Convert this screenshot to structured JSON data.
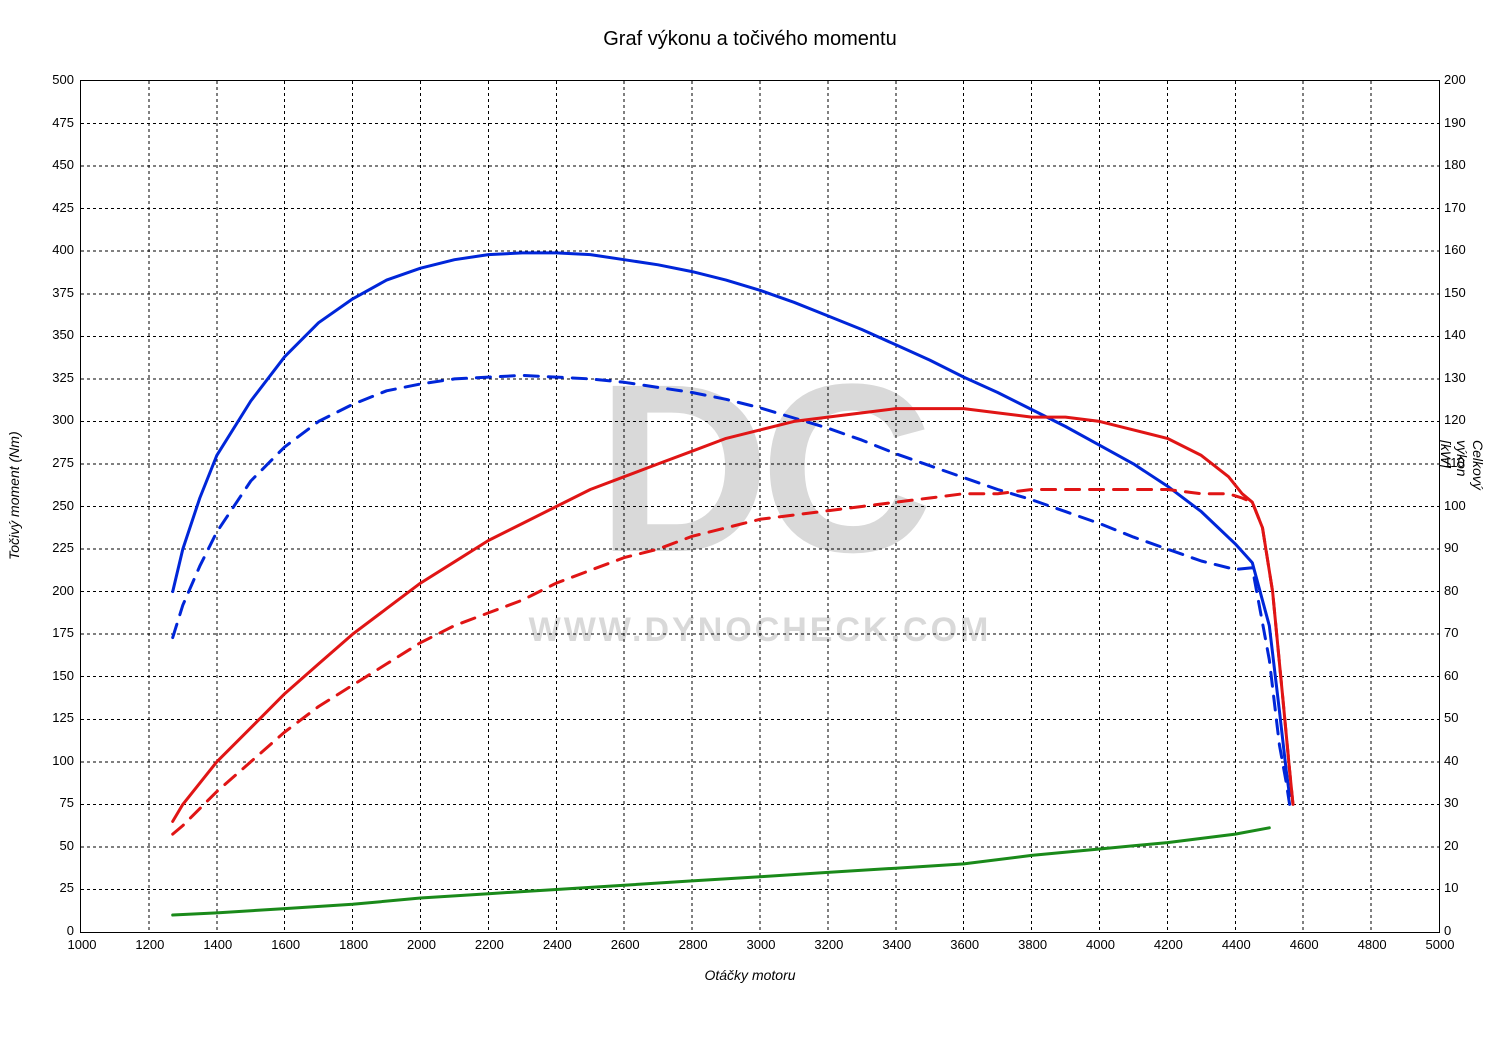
{
  "chart": {
    "type": "line",
    "title": "Graf výkonu a točivého momentu",
    "title_fontsize": 20,
    "background_color": "#ffffff",
    "grid_color": "#000000",
    "grid_dash": "3 3",
    "x_axis": {
      "label": "Otáčky motoru",
      "min": 1000,
      "max": 5000,
      "tick_step": 200,
      "fontsize": 13,
      "label_fontsize": 14
    },
    "y_left": {
      "label": "Točivý moment (Nm)",
      "min": 0,
      "max": 500,
      "tick_step": 25,
      "fontsize": 13,
      "label_fontsize": 14
    },
    "y_right": {
      "label": "Celkový výkon [kW]",
      "min": 0,
      "max": 200,
      "tick_step": 10,
      "fontsize": 13,
      "label_fontsize": 14
    },
    "watermark": {
      "logo_text": "DC",
      "url_text": "WWW.DYNOCHECK.COM",
      "color": "#d9d9d9",
      "logo_fontsize": 240,
      "url_fontsize": 34
    },
    "series": [
      {
        "name": "torque_tuned",
        "axis": "left",
        "color": "#0026d9",
        "line_width": 3,
        "dash": "none",
        "points": [
          [
            1270,
            200
          ],
          [
            1300,
            225
          ],
          [
            1350,
            255
          ],
          [
            1400,
            280
          ],
          [
            1500,
            312
          ],
          [
            1600,
            338
          ],
          [
            1700,
            358
          ],
          [
            1800,
            372
          ],
          [
            1900,
            383
          ],
          [
            2000,
            390
          ],
          [
            2100,
            395
          ],
          [
            2200,
            398
          ],
          [
            2300,
            399
          ],
          [
            2400,
            399
          ],
          [
            2500,
            398
          ],
          [
            2600,
            395
          ],
          [
            2700,
            392
          ],
          [
            2800,
            388
          ],
          [
            2900,
            383
          ],
          [
            3000,
            377
          ],
          [
            3100,
            370
          ],
          [
            3200,
            362
          ],
          [
            3300,
            354
          ],
          [
            3400,
            345
          ],
          [
            3500,
            336
          ],
          [
            3600,
            326
          ],
          [
            3700,
            317
          ],
          [
            3800,
            307
          ],
          [
            3900,
            297
          ],
          [
            4000,
            286
          ],
          [
            4100,
            275
          ],
          [
            4200,
            262
          ],
          [
            4300,
            247
          ],
          [
            4400,
            228
          ],
          [
            4450,
            217
          ],
          [
            4500,
            180
          ],
          [
            4530,
            130
          ],
          [
            4550,
            95
          ],
          [
            4560,
            80
          ]
        ]
      },
      {
        "name": "torque_stock",
        "axis": "left",
        "color": "#0026d9",
        "line_width": 3,
        "dash": "14 10",
        "points": [
          [
            1270,
            173
          ],
          [
            1300,
            192
          ],
          [
            1350,
            215
          ],
          [
            1400,
            235
          ],
          [
            1500,
            265
          ],
          [
            1600,
            285
          ],
          [
            1700,
            300
          ],
          [
            1800,
            310
          ],
          [
            1900,
            318
          ],
          [
            2000,
            322
          ],
          [
            2100,
            325
          ],
          [
            2200,
            326
          ],
          [
            2300,
            327
          ],
          [
            2400,
            326
          ],
          [
            2500,
            325
          ],
          [
            2600,
            323
          ],
          [
            2700,
            320
          ],
          [
            2800,
            317
          ],
          [
            2900,
            313
          ],
          [
            3000,
            308
          ],
          [
            3100,
            302
          ],
          [
            3200,
            296
          ],
          [
            3300,
            289
          ],
          [
            3400,
            281
          ],
          [
            3500,
            274
          ],
          [
            3600,
            267
          ],
          [
            3700,
            260
          ],
          [
            3800,
            254
          ],
          [
            3900,
            247
          ],
          [
            4000,
            240
          ],
          [
            4100,
            232
          ],
          [
            4200,
            225
          ],
          [
            4300,
            218
          ],
          [
            4400,
            213
          ],
          [
            4450,
            214
          ],
          [
            4500,
            160
          ],
          [
            4530,
            110
          ],
          [
            4550,
            88
          ],
          [
            4560,
            75
          ]
        ]
      },
      {
        "name": "power_tuned",
        "axis": "right",
        "color": "#e01515",
        "line_width": 3,
        "dash": "none",
        "points": [
          [
            1270,
            26
          ],
          [
            1300,
            30
          ],
          [
            1400,
            40
          ],
          [
            1500,
            48
          ],
          [
            1600,
            56
          ],
          [
            1700,
            63
          ],
          [
            1800,
            70
          ],
          [
            1900,
            76
          ],
          [
            2000,
            82
          ],
          [
            2100,
            87
          ],
          [
            2200,
            92
          ],
          [
            2300,
            96
          ],
          [
            2400,
            100
          ],
          [
            2500,
            104
          ],
          [
            2600,
            107
          ],
          [
            2700,
            110
          ],
          [
            2800,
            113
          ],
          [
            2900,
            116
          ],
          [
            3000,
            118
          ],
          [
            3100,
            120
          ],
          [
            3200,
            121
          ],
          [
            3300,
            122
          ],
          [
            3400,
            123
          ],
          [
            3500,
            123
          ],
          [
            3600,
            123
          ],
          [
            3700,
            122
          ],
          [
            3800,
            121
          ],
          [
            3900,
            121
          ],
          [
            4000,
            120
          ],
          [
            4100,
            118
          ],
          [
            4200,
            116
          ],
          [
            4300,
            112
          ],
          [
            4380,
            107
          ],
          [
            4420,
            103
          ],
          [
            4450,
            101
          ],
          [
            4480,
            95
          ],
          [
            4510,
            80
          ],
          [
            4540,
            55
          ],
          [
            4560,
            38
          ],
          [
            4570,
            30
          ]
        ]
      },
      {
        "name": "power_stock",
        "axis": "right",
        "color": "#e01515",
        "line_width": 3,
        "dash": "14 10",
        "points": [
          [
            1270,
            23
          ],
          [
            1300,
            25
          ],
          [
            1400,
            33
          ],
          [
            1500,
            40
          ],
          [
            1600,
            47
          ],
          [
            1700,
            53
          ],
          [
            1800,
            58
          ],
          [
            1900,
            63
          ],
          [
            2000,
            68
          ],
          [
            2100,
            72
          ],
          [
            2200,
            75
          ],
          [
            2300,
            78
          ],
          [
            2400,
            82
          ],
          [
            2500,
            85
          ],
          [
            2600,
            88
          ],
          [
            2700,
            90
          ],
          [
            2800,
            93
          ],
          [
            2900,
            95
          ],
          [
            3000,
            97
          ],
          [
            3100,
            98
          ],
          [
            3200,
            99
          ],
          [
            3300,
            100
          ],
          [
            3400,
            101
          ],
          [
            3500,
            102
          ],
          [
            3600,
            103
          ],
          [
            3700,
            103
          ],
          [
            3800,
            104
          ],
          [
            3900,
            104
          ],
          [
            4000,
            104
          ],
          [
            4100,
            104
          ],
          [
            4200,
            104
          ],
          [
            4300,
            103
          ],
          [
            4380,
            103
          ],
          [
            4420,
            102
          ],
          [
            4450,
            101
          ],
          [
            4480,
            95
          ],
          [
            4510,
            80
          ],
          [
            4540,
            55
          ],
          [
            4560,
            38
          ],
          [
            4570,
            30
          ]
        ]
      },
      {
        "name": "losses",
        "axis": "right",
        "color": "#1a8a1a",
        "line_width": 3,
        "dash": "none",
        "points": [
          [
            1270,
            4
          ],
          [
            1400,
            4.5
          ],
          [
            1600,
            5.5
          ],
          [
            1800,
            6.5
          ],
          [
            2000,
            8
          ],
          [
            2200,
            9
          ],
          [
            2400,
            10
          ],
          [
            2600,
            11
          ],
          [
            2800,
            12
          ],
          [
            3000,
            13
          ],
          [
            3200,
            14
          ],
          [
            3400,
            15
          ],
          [
            3600,
            16
          ],
          [
            3800,
            18
          ],
          [
            4000,
            19.5
          ],
          [
            4200,
            21
          ],
          [
            4400,
            23
          ],
          [
            4500,
            24.5
          ]
        ]
      }
    ]
  }
}
